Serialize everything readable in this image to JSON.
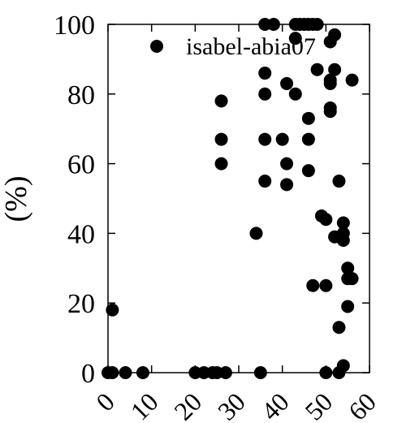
{
  "chart_data": {
    "type": "scatter",
    "ylabel": "(%)",
    "xlim": [
      0,
      60
    ],
    "ylim": [
      0,
      100
    ],
    "x_ticks": [
      "0",
      "10",
      "20",
      "30",
      "40",
      "50",
      "60"
    ],
    "y_ticks": [
      "0",
      "20",
      "40",
      "60",
      "80",
      "100"
    ],
    "grid": false,
    "legend_position": "top-right",
    "color": "#000000",
    "series": [
      {
        "name": "isabel-abia07",
        "points": [
          [
            0,
            0
          ],
          [
            1,
            0
          ],
          [
            1,
            18
          ],
          [
            4,
            0
          ],
          [
            8,
            0
          ],
          [
            20,
            0
          ],
          [
            22,
            0
          ],
          [
            24,
            0
          ],
          [
            25,
            0
          ],
          [
            26,
            60
          ],
          [
            26,
            67
          ],
          [
            26,
            78
          ],
          [
            27,
            0
          ],
          [
            34,
            40
          ],
          [
            35,
            0
          ],
          [
            36,
            55
          ],
          [
            36,
            67
          ],
          [
            36,
            80
          ],
          [
            36,
            86
          ],
          [
            36,
            100
          ],
          [
            38,
            100
          ],
          [
            40,
            67
          ],
          [
            41,
            54
          ],
          [
            41,
            60
          ],
          [
            41,
            83
          ],
          [
            43,
            80
          ],
          [
            43,
            96
          ],
          [
            43,
            100
          ],
          [
            44,
            100
          ],
          [
            45,
            100
          ],
          [
            46,
            58
          ],
          [
            46,
            67
          ],
          [
            46,
            73
          ],
          [
            46,
            100
          ],
          [
            47,
            25
          ],
          [
            47,
            100
          ],
          [
            48,
            87
          ],
          [
            48,
            100
          ],
          [
            49,
            45
          ],
          [
            50,
            0
          ],
          [
            50,
            25
          ],
          [
            50,
            44
          ],
          [
            51,
            75
          ],
          [
            51,
            76
          ],
          [
            51,
            83
          ],
          [
            51,
            84
          ],
          [
            51,
            95
          ],
          [
            52,
            39
          ],
          [
            52,
            87
          ],
          [
            52,
            97
          ],
          [
            53,
            0
          ],
          [
            53,
            13
          ],
          [
            53,
            55
          ],
          [
            54,
            2
          ],
          [
            54,
            38
          ],
          [
            54,
            40
          ],
          [
            54,
            43
          ],
          [
            55,
            19
          ],
          [
            55,
            27
          ],
          [
            55,
            30
          ],
          [
            56,
            27
          ],
          [
            56,
            84
          ]
        ]
      }
    ]
  }
}
